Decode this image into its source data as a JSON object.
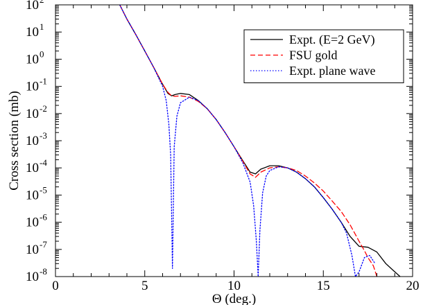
{
  "chart_data": {
    "type": "line",
    "xlabel": "Θ (deg.)",
    "ylabel": "Cross section (mb)",
    "xlim": [
      0,
      20
    ],
    "ylim": [
      1e-08,
      100
    ],
    "yscale": "log",
    "xticks": [
      0,
      5,
      10,
      15,
      20
    ],
    "ytick_exponents": [
      -8,
      -7,
      -6,
      -5,
      -4,
      -3,
      -2,
      -1,
      0,
      1,
      2
    ],
    "ytick_base": "10",
    "grid": false,
    "legend_position": "top-right",
    "series": [
      {
        "name": "Expt. (E=2 GeV)",
        "color": "#000000",
        "dash": "solid",
        "x": [
          3.6,
          4.0,
          4.5,
          5.0,
          5.5,
          6.0,
          6.3,
          6.5,
          6.7,
          7.0,
          7.5,
          8.0,
          8.5,
          9.0,
          9.5,
          10.0,
          10.5,
          10.9,
          11.2,
          11.5,
          12.0,
          12.5,
          13.0,
          13.5,
          14.0,
          14.5,
          15.0,
          15.5,
          16.0,
          16.5,
          17.0,
          17.5,
          18.0,
          18.5,
          19.0,
          19.3
        ],
        "y": [
          100,
          30,
          8,
          2,
          0.5,
          0.12,
          0.055,
          0.045,
          0.05,
          0.055,
          0.05,
          0.03,
          0.015,
          0.006,
          0.002,
          0.0006,
          0.00018,
          7e-05,
          6e-05,
          9e-05,
          0.00012,
          0.00012,
          0.0001,
          7e-05,
          4e-05,
          2e-05,
          8e-06,
          3e-06,
          1e-06,
          3e-07,
          1.3e-07,
          1.2e-07,
          8e-08,
          3e-08,
          1.5e-08,
          1e-08
        ]
      },
      {
        "name": "FSU gold",
        "color": "#ff0000",
        "dash": "dashed",
        "x": [
          3.6,
          4.0,
          4.5,
          5.0,
          5.5,
          6.0,
          6.3,
          6.5,
          6.7,
          7.0,
          7.5,
          8.0,
          8.5,
          9.0,
          9.5,
          10.0,
          10.5,
          10.9,
          11.2,
          11.5,
          12.0,
          12.5,
          13.0,
          13.5,
          14.0,
          14.5,
          15.0,
          15.5,
          16.0,
          16.5,
          17.0,
          17.3,
          17.5,
          17.8,
          18.0
        ],
        "y": [
          100,
          30,
          8,
          2,
          0.5,
          0.12,
          0.06,
          0.045,
          0.043,
          0.045,
          0.04,
          0.028,
          0.015,
          0.006,
          0.002,
          0.0006,
          0.00017,
          6e-05,
          4.5e-05,
          7e-05,
          0.0001,
          0.00011,
          0.0001,
          8e-05,
          5e-05,
          2.8e-05,
          1.4e-05,
          6e-06,
          2.5e-06,
          8e-07,
          2e-07,
          9e-08,
          5e-08,
          2.5e-08,
          1e-08
        ]
      },
      {
        "name": "Expt. plane wave",
        "color": "#0000ff",
        "dash": "dotted",
        "x": [
          3.6,
          4.0,
          4.5,
          5.0,
          5.5,
          6.0,
          6.2,
          6.35,
          6.45,
          6.55,
          6.65,
          6.8,
          7.0,
          7.5,
          8.0,
          8.5,
          9.0,
          9.5,
          10.0,
          10.5,
          10.9,
          11.1,
          11.25,
          11.35,
          11.45,
          11.6,
          11.8,
          12.0,
          12.5,
          13.0,
          13.5,
          14.0,
          14.5,
          15.0,
          15.5,
          16.0,
          16.3,
          16.6,
          16.8,
          17.0,
          17.3,
          17.6,
          17.9
        ],
        "y": [
          100,
          30,
          8,
          2,
          0.5,
          0.1,
          0.03,
          0.004,
          0.0003,
          2e-08,
          0.0006,
          0.008,
          0.025,
          0.04,
          0.03,
          0.015,
          0.006,
          0.002,
          0.0006,
          0.00015,
          3e-05,
          4e-06,
          2e-07,
          1e-08,
          5e-07,
          1.2e-05,
          5e-05,
          8e-05,
          0.00011,
          0.0001,
          7e-05,
          4e-05,
          2e-05,
          8e-06,
          3e-06,
          1e-06,
          4e-07,
          6e-08,
          1e-08,
          1.5e-08,
          5e-08,
          6e-08,
          3e-08
        ]
      }
    ]
  }
}
